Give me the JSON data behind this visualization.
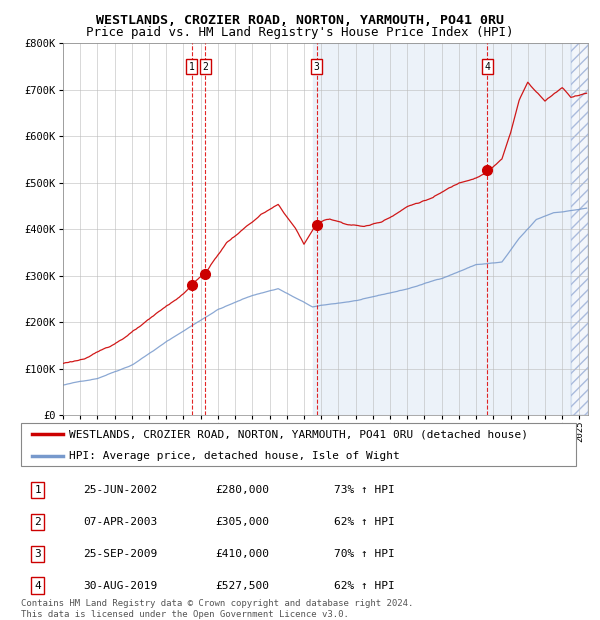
{
  "title": "WESTLANDS, CROZIER ROAD, NORTON, YARMOUTH, PO41 0RU",
  "subtitle": "Price paid vs. HM Land Registry's House Price Index (HPI)",
  "ylim": [
    0,
    800000
  ],
  "yticks": [
    0,
    100000,
    200000,
    300000,
    400000,
    500000,
    600000,
    700000,
    800000
  ],
  "ytick_labels": [
    "£0",
    "£100K",
    "£200K",
    "£300K",
    "£400K",
    "£500K",
    "£600K",
    "£700K",
    "£800K"
  ],
  "xlim_start": 1995.0,
  "xlim_end": 2025.5,
  "sale_dates": [
    2002.48,
    2003.27,
    2009.73,
    2019.66
  ],
  "sale_prices": [
    280000,
    305000,
    410000,
    527500
  ],
  "sale_labels": [
    "1",
    "2",
    "3",
    "4"
  ],
  "vline_color": "#dd0000",
  "sale_dot_color": "#cc0000",
  "hpi_line_color": "#7799cc",
  "price_line_color": "#cc0000",
  "background_shading_start": 2009.5,
  "hatch_start": 2024.5,
  "hatch_end": 2025.5,
  "legend_entries": [
    "WESTLANDS, CROZIER ROAD, NORTON, YARMOUTH, PO41 0RU (detached house)",
    "HPI: Average price, detached house, Isle of Wight"
  ],
  "table_data": [
    [
      "1",
      "25-JUN-2002",
      "£280,000",
      "73% ↑ HPI"
    ],
    [
      "2",
      "07-APR-2003",
      "£305,000",
      "62% ↑ HPI"
    ],
    [
      "3",
      "25-SEP-2009",
      "£410,000",
      "70% ↑ HPI"
    ],
    [
      "4",
      "30-AUG-2019",
      "£527,500",
      "62% ↑ HPI"
    ]
  ],
  "footer": "Contains HM Land Registry data © Crown copyright and database right 2024.\nThis data is licensed under the Open Government Licence v3.0.",
  "title_fontsize": 9.5,
  "subtitle_fontsize": 9,
  "tick_fontsize": 7.5,
  "legend_fontsize": 8,
  "table_fontsize": 8,
  "footer_fontsize": 6.5
}
